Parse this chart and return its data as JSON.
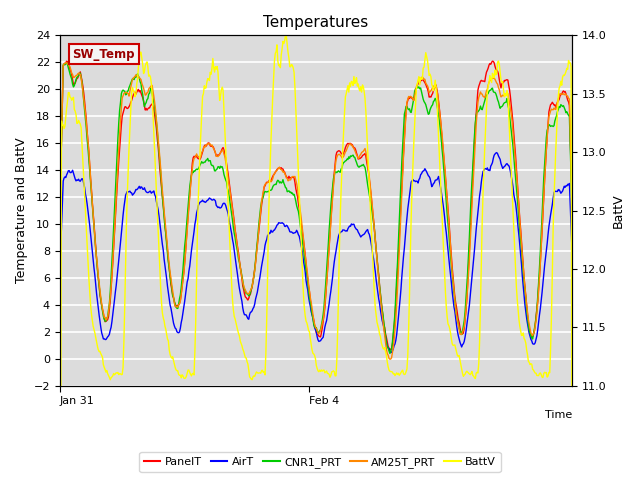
{
  "title": "Temperatures",
  "xlabel": "Time",
  "ylabel_left": "Temperature and BattV",
  "ylabel_right": "BattV",
  "ylim_left": [
    -2,
    24
  ],
  "ylim_right": [
    11.0,
    14.0
  ],
  "yticks_left": [
    -2,
    0,
    2,
    4,
    6,
    8,
    10,
    12,
    14,
    16,
    18,
    20,
    22,
    24
  ],
  "yticks_right": [
    11.0,
    11.5,
    12.0,
    12.5,
    13.0,
    13.5,
    14.0
  ],
  "bg_color": "#dcdcdc",
  "grid_color": "#ffffff",
  "series_colors": {
    "PanelT": "#ff0000",
    "AirT": "#0000ff",
    "CNR1_PRT": "#00cc00",
    "AM25T_PRT": "#ff8800",
    "BattV": "#ffff00"
  },
  "legend_label": "SW_Temp",
  "legend_box_color": "#990000",
  "legend_box_edge": "#cc0000",
  "legend_box_bg": "#f5f5f5"
}
